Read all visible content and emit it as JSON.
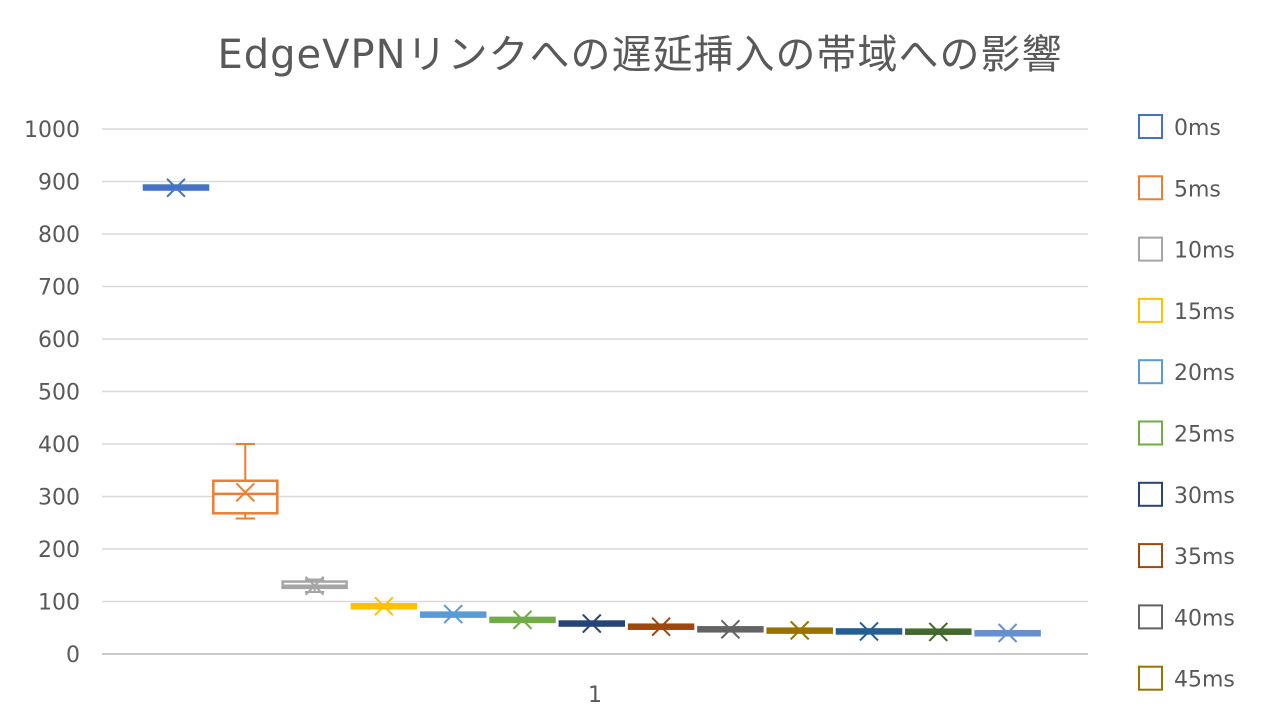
{
  "chart_data": {
    "type": "box",
    "title": "EdgeVPNリンクへの遅延挿入の帯域への影響",
    "xlabel": "",
    "ylabel": "",
    "categories": [
      "1"
    ],
    "ylim": [
      0,
      1000
    ],
    "yticks": [
      0,
      100,
      200,
      300,
      400,
      500,
      600,
      700,
      800,
      900,
      1000
    ],
    "grid": true,
    "legend_position": "right",
    "series": [
      {
        "name": "0ms",
        "color": "#4472C4",
        "min": 887,
        "q1": 887,
        "median": 888,
        "q3": 890,
        "max": 890,
        "mean": 888
      },
      {
        "name": "5ms",
        "color": "#ED7D31",
        "min": 258,
        "q1": 268,
        "median": 305,
        "q3": 330,
        "max": 400,
        "mean": 308
      },
      {
        "name": "10ms",
        "color": "#A5A5A5",
        "min": 118,
        "q1": 126,
        "median": 130,
        "q3": 138,
        "max": 142,
        "mean": 130
      },
      {
        "name": "15ms",
        "color": "#FFC000",
        "min": 88,
        "q1": 88,
        "median": 91,
        "q3": 94,
        "max": 95,
        "mean": 91
      },
      {
        "name": "20ms",
        "color": "#5B9BD5",
        "min": 73,
        "q1": 73,
        "median": 75,
        "q3": 77,
        "max": 78,
        "mean": 76
      },
      {
        "name": "25ms",
        "color": "#70AD47",
        "min": 63,
        "q1": 63,
        "median": 65,
        "q3": 67,
        "max": 68,
        "mean": 65
      },
      {
        "name": "30ms",
        "color": "#264478",
        "min": 56,
        "q1": 56,
        "median": 58,
        "q3": 60,
        "max": 61,
        "mean": 58
      },
      {
        "name": "35ms",
        "color": "#9E480E",
        "min": 50,
        "q1": 50,
        "median": 52,
        "q3": 54,
        "max": 55,
        "mean": 52
      },
      {
        "name": "40ms",
        "color": "#636363",
        "min": 45,
        "q1": 46,
        "median": 47,
        "q3": 48,
        "max": 49,
        "mean": 47
      },
      {
        "name": "45ms",
        "color": "#997300",
        "min": 42,
        "q1": 43,
        "median": 45,
        "q3": 46,
        "max": 47,
        "mean": 45
      },
      {
        "name": "",
        "color": "#255E91",
        "min": 41,
        "q1": 42,
        "median": 43,
        "q3": 44,
        "max": 45,
        "mean": 43
      },
      {
        "name": "",
        "color": "#43682B",
        "min": 41,
        "q1": 42,
        "median": 42,
        "q3": 43,
        "max": 44,
        "mean": 42
      },
      {
        "name": "",
        "color": "#698ED0",
        "min": 37,
        "q1": 38,
        "median": 40,
        "q3": 41,
        "max": 42,
        "mean": 40
      }
    ]
  }
}
